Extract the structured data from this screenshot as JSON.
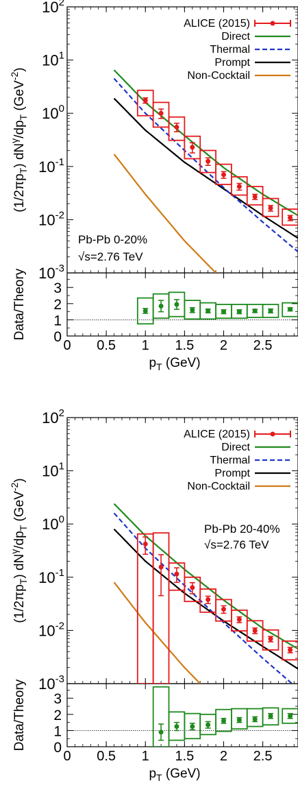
{
  "common": {
    "xlabel": "p",
    "xlabel_sub": "T",
    "xlabel_unit": " (GeV)",
    "xticks": [
      "0",
      "0.5",
      "1",
      "1.5",
      "2",
      "2.5"
    ],
    "xlim": [
      0,
      2.95
    ],
    "ylabel_main": "(1/2πp",
    "ylabel_sub1": "T",
    "ylabel_mid": ") dN",
    "ylabel_sup": "γ",
    "ylabel_mid2": "/dp",
    "ylabel_sub2": "T",
    "ylabel_unit": " (GeV",
    "ylabel_unit_sup": "-2",
    "ylabel_end": ")",
    "ylabel_ratio": "Data/Theory",
    "ratio_yticks": [
      "0",
      "1",
      "2",
      "3"
    ],
    "ratio_ylim": [
      0,
      3.9
    ],
    "legend": {
      "data": "ALICE (2015)",
      "direct": "Direct",
      "thermal": "Thermal",
      "prompt": "Prompt",
      "noncocktail": "Non-Cocktail"
    },
    "colors": {
      "data": "#e41a1c",
      "direct": "#1e8a1e",
      "thermal": "#1f35c8",
      "prompt": "#000000",
      "noncocktail": "#d07a14",
      "ratio": "#1e8a1e"
    }
  },
  "chart_data": [
    {
      "type": "line",
      "annotation": [
        "Pb-Pb 0-20%",
        "√s=2.76 TeV"
      ],
      "ylim_log10": [
        -3,
        2
      ],
      "yticks": [
        {
          "base": "10",
          "exp": "2"
        },
        {
          "base": "10",
          "exp": "1"
        },
        {
          "base": "10",
          "exp": "0"
        },
        {
          "base": "10",
          "exp": "-1"
        },
        {
          "base": "10",
          "exp": "-2"
        },
        {
          "base": "10",
          "exp": "-3"
        }
      ],
      "curves": {
        "direct": {
          "x": [
            0.6,
            1.0,
            1.5,
            2.0,
            2.5,
            2.95
          ],
          "y": [
            6.5,
            1.6,
            0.38,
            0.095,
            0.03,
            0.012
          ]
        },
        "thermal": {
          "x": [
            0.6,
            1.0,
            1.5,
            2.0,
            2.5,
            2.95
          ],
          "y": [
            4.5,
            1.0,
            0.2,
            0.04,
            0.009,
            0.0025
          ]
        },
        "prompt": {
          "x": [
            0.6,
            1.0,
            1.5,
            2.0,
            2.5,
            2.95
          ],
          "y": [
            1.9,
            0.48,
            0.12,
            0.038,
            0.012,
            0.0045
          ]
        },
        "noncocktail": {
          "x": [
            0.6,
            1.0,
            1.5,
            1.9
          ],
          "y": [
            0.17,
            0.03,
            0.004,
            0.001
          ]
        }
      },
      "data": {
        "x": [
          1.0,
          1.2,
          1.4,
          1.6,
          1.8,
          2.0,
          2.2,
          2.4,
          2.6,
          2.85
        ],
        "y": [
          1.75,
          1.0,
          0.55,
          0.23,
          0.125,
          0.07,
          0.042,
          0.027,
          0.0165,
          0.0108
        ],
        "stat": [
          0.2,
          0.2,
          0.1,
          0.05,
          0.02,
          0.01,
          0.006,
          0.003,
          0.002,
          0.0012
        ],
        "sys_lo": [
          0.9,
          0.55,
          0.31,
          0.14,
          0.077,
          0.046,
          0.029,
          0.019,
          0.0115,
          0.0079
        ],
        "sys_hi": [
          2.7,
          1.6,
          0.85,
          0.37,
          0.2,
          0.11,
          0.064,
          0.042,
          0.025,
          0.0158
        ],
        "halfwidth": [
          0.1,
          0.1,
          0.1,
          0.1,
          0.1,
          0.1,
          0.1,
          0.1,
          0.1,
          0.1
        ]
      },
      "ratio": {
        "x": [
          1.0,
          1.2,
          1.4,
          1.6,
          1.8,
          2.0,
          2.2,
          2.4,
          2.6,
          2.85
        ],
        "y": [
          1.55,
          1.85,
          1.95,
          1.6,
          1.55,
          1.5,
          1.5,
          1.55,
          1.55,
          1.65
        ],
        "stat": [
          0.15,
          0.35,
          0.3,
          0.15,
          0.12,
          0.12,
          0.12,
          0.1,
          0.12,
          0.1
        ],
        "sys_lo": [
          0.75,
          1.1,
          1.2,
          1.05,
          1.05,
          1.1,
          1.1,
          1.15,
          1.15,
          1.2
        ],
        "sys_hi": [
          2.35,
          2.6,
          2.7,
          2.2,
          2.05,
          1.95,
          1.95,
          1.95,
          1.95,
          2.05
        ]
      }
    },
    {
      "type": "line",
      "annotation": [
        "Pb-Pb 20-40%",
        "√s=2.76 TeV"
      ],
      "ylim_log10": [
        -3,
        2
      ],
      "yticks": [
        {
          "base": "10",
          "exp": "2"
        },
        {
          "base": "10",
          "exp": "1"
        },
        {
          "base": "10",
          "exp": "0"
        },
        {
          "base": "10",
          "exp": "-1"
        },
        {
          "base": "10",
          "exp": "-2"
        },
        {
          "base": "10",
          "exp": "-3"
        }
      ],
      "curves": {
        "direct": {
          "x": [
            0.6,
            1.0,
            1.5,
            2.0,
            2.5,
            2.95
          ],
          "y": [
            2.4,
            0.6,
            0.14,
            0.037,
            0.011,
            0.0045
          ]
        },
        "thermal": {
          "x": [
            0.6,
            1.0,
            1.5,
            2.0,
            2.5,
            2.95
          ],
          "y": [
            1.6,
            0.35,
            0.07,
            0.014,
            0.003,
            0.0008
          ]
        },
        "prompt": {
          "x": [
            0.6,
            1.0,
            1.5,
            2.0,
            2.5,
            2.95
          ],
          "y": [
            0.8,
            0.2,
            0.05,
            0.015,
            0.005,
            0.0019
          ]
        },
        "noncocktail": {
          "x": [
            0.6,
            1.0,
            1.5,
            1.7
          ],
          "y": [
            0.08,
            0.014,
            0.002,
            0.001
          ]
        }
      },
      "data": {
        "x": [
          1.0,
          1.2,
          1.4,
          1.6,
          1.8,
          2.0,
          2.2,
          2.4,
          2.6,
          2.85
        ],
        "y": [
          0.42,
          0.155,
          0.115,
          0.064,
          0.038,
          0.025,
          0.016,
          0.0099,
          0.0069,
          0.0043
        ],
        "stat": [
          0.15,
          0.11,
          0.035,
          0.015,
          0.006,
          0.004,
          0.002,
          0.0012,
          0.0008,
          0.0005
        ],
        "sys_lo": [
          0.001,
          0.001,
          0.057,
          0.035,
          0.022,
          0.015,
          0.0098,
          0.0063,
          0.0043,
          0.0028
        ],
        "sys_hi": [
          0.65,
          0.68,
          0.185,
          0.1,
          0.06,
          0.038,
          0.024,
          0.0152,
          0.0102,
          0.0063
        ],
        "halfwidth": [
          0.1,
          0.1,
          0.1,
          0.1,
          0.1,
          0.1,
          0.1,
          0.1,
          0.1,
          0.1
        ]
      },
      "ratio": {
        "x": [
          1.2,
          1.4,
          1.6,
          1.8,
          2.0,
          2.2,
          2.4,
          2.6,
          2.85
        ],
        "y": [
          0.9,
          1.25,
          1.25,
          1.35,
          1.6,
          1.65,
          1.7,
          1.9,
          1.9
        ],
        "stat": [
          0.5,
          0.25,
          0.2,
          0.2,
          0.15,
          0.15,
          0.15,
          0.15,
          0.15
        ],
        "sys_lo": [
          0.0,
          0.4,
          0.5,
          0.75,
          0.95,
          1.1,
          1.25,
          1.35,
          1.45
        ],
        "sys_hi": [
          3.7,
          2.15,
          2.05,
          2.0,
          2.3,
          2.35,
          2.35,
          2.4,
          2.35
        ]
      }
    }
  ]
}
